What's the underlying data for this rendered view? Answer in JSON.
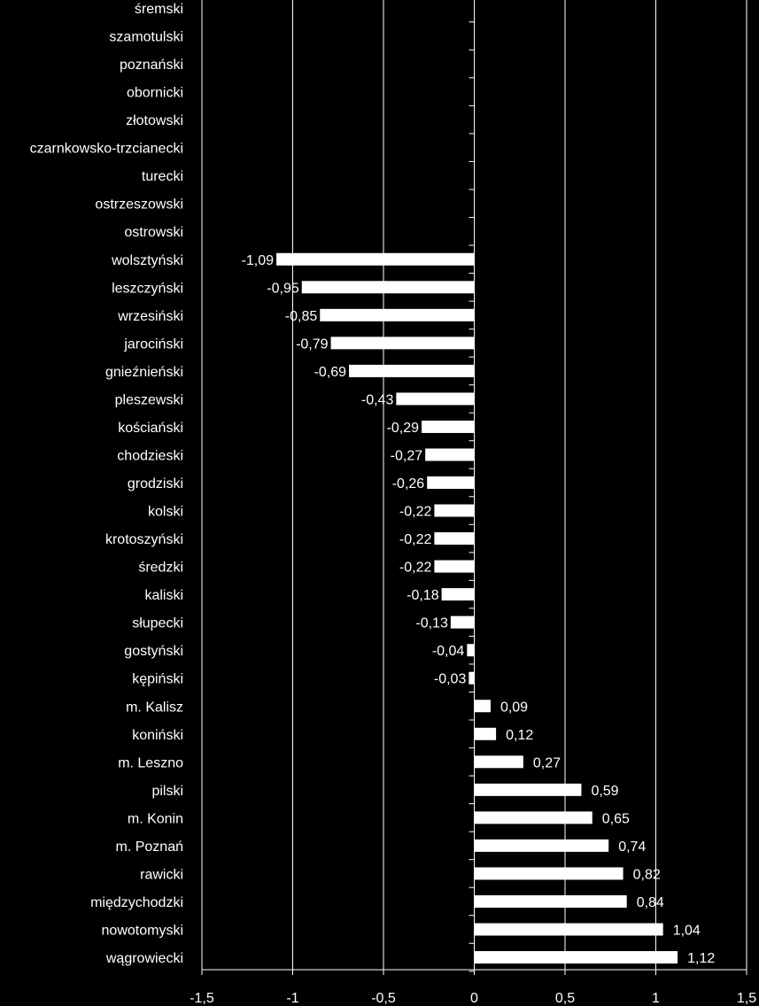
{
  "chart_data": {
    "type": "bar",
    "orientation": "horizontal",
    "title": "",
    "xlabel": "",
    "ylabel": "",
    "xlim": [
      -1.5,
      1.5
    ],
    "xticks": [
      -1.5,
      -1,
      -0.5,
      0,
      0.5,
      1,
      1.5
    ],
    "xtick_labels": [
      "-1,5",
      "-1",
      "-0,5",
      "0",
      "0,5",
      "1",
      "1,5"
    ],
    "grid": true,
    "legend": "none",
    "colors": {
      "background": "#000000",
      "bar": "#ffffff",
      "text": "#ffffff",
      "grid": "#ffffff"
    },
    "categories": [
      "śremski",
      "szamotulski",
      "poznański",
      "obornicki",
      "złotowski",
      "czarnkowsko-trzcianecki",
      "turecki",
      "ostrzeszowski",
      "ostrowski",
      "wolsztyński",
      "leszczyński",
      "wrzesiński",
      "jarociński",
      "gnieźnieński",
      "pleszewski",
      "kościański",
      "chodzieski",
      "grodziski",
      "kolski",
      "krotoszyński",
      "średzki",
      "kaliski",
      "słupecki",
      "gostyński",
      "kępiński",
      "m. Kalisz",
      "koniński",
      "m. Leszno",
      "pilski",
      "m. Konin",
      "m. Poznań",
      "rawicki",
      "międzychodzki",
      "nowotomyski",
      "wągrowiecki"
    ],
    "values": [
      null,
      null,
      null,
      null,
      null,
      null,
      null,
      null,
      null,
      -1.09,
      -0.95,
      -0.85,
      -0.79,
      -0.69,
      -0.43,
      -0.29,
      -0.27,
      -0.26,
      -0.22,
      -0.22,
      -0.22,
      -0.18,
      -0.13,
      -0.04,
      -0.03,
      0.09,
      0.12,
      0.27,
      0.59,
      0.65,
      0.74,
      0.82,
      0.84,
      1.04,
      1.12
    ],
    "value_labels": [
      "",
      "",
      "",
      "",
      "",
      "",
      "",
      "",
      "",
      "-1,09",
      "-0,95",
      "-0,85",
      "-0,79",
      "-0,69",
      "-0,43",
      "-0,29",
      "-0,27",
      "-0,26",
      "-0,22",
      "-0,22",
      "-0,22",
      "-0,18",
      "-0,13",
      "-0,04",
      "-0,03",
      "0,09",
      "0,12",
      "0,27",
      "0,59",
      "0,65",
      "0,74",
      "0,82",
      "0,84",
      "1,04",
      "1,12"
    ]
  }
}
